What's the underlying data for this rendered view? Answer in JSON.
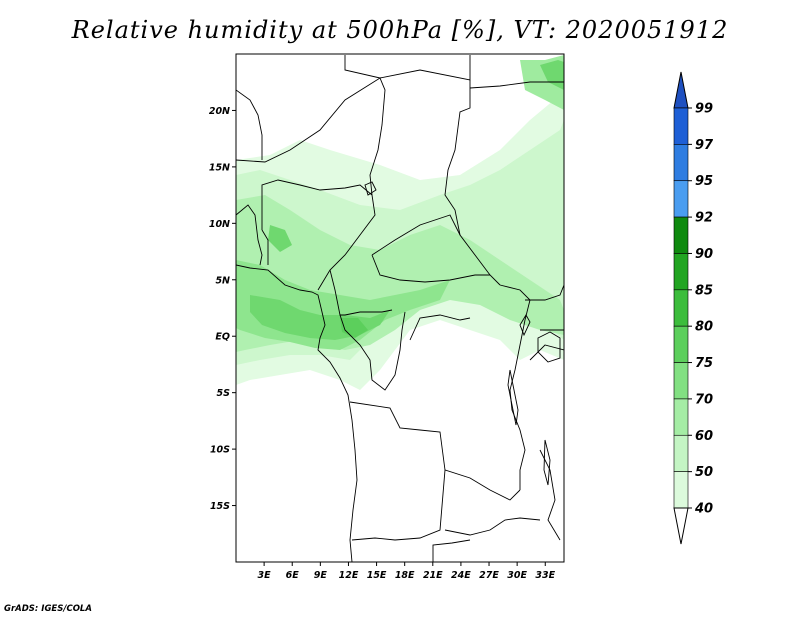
{
  "title": "Relative humidity at 500hPa [%], VT: 2020051912",
  "credit": "GrADS: IGES/COLA",
  "map": {
    "lon_range": [
      0,
      35
    ],
    "lat_range": [
      -20,
      25
    ],
    "x_ticks": [
      "3E",
      "6E",
      "9E",
      "12E",
      "15E",
      "18E",
      "21E",
      "24E",
      "27E",
      "30E",
      "33E"
    ],
    "x_tick_values": [
      3,
      6,
      9,
      12,
      15,
      18,
      21,
      24,
      27,
      30,
      33
    ],
    "y_ticks": [
      "20N",
      "15N",
      "10N",
      "5N",
      "EQ",
      "5S",
      "10S",
      "15S"
    ],
    "y_tick_values": [
      20,
      15,
      10,
      5,
      0,
      -5,
      -10,
      -15
    ]
  },
  "colorbar": {
    "levels": [
      "99",
      "97",
      "95",
      "92",
      "90",
      "85",
      "80",
      "75",
      "70",
      "60",
      "50",
      "40"
    ],
    "colors": [
      "#1e5fd6",
      "#2f7de1",
      "#4a9df0",
      "#0f8a0f",
      "#22a522",
      "#3cbd3c",
      "#5ccf5c",
      "#82e082",
      "#a5eda5",
      "#c4f5c4",
      "#dcfadc",
      "#f0fff0"
    ],
    "over_color": "#1e50c0",
    "under_color": "#ffffff"
  }
}
